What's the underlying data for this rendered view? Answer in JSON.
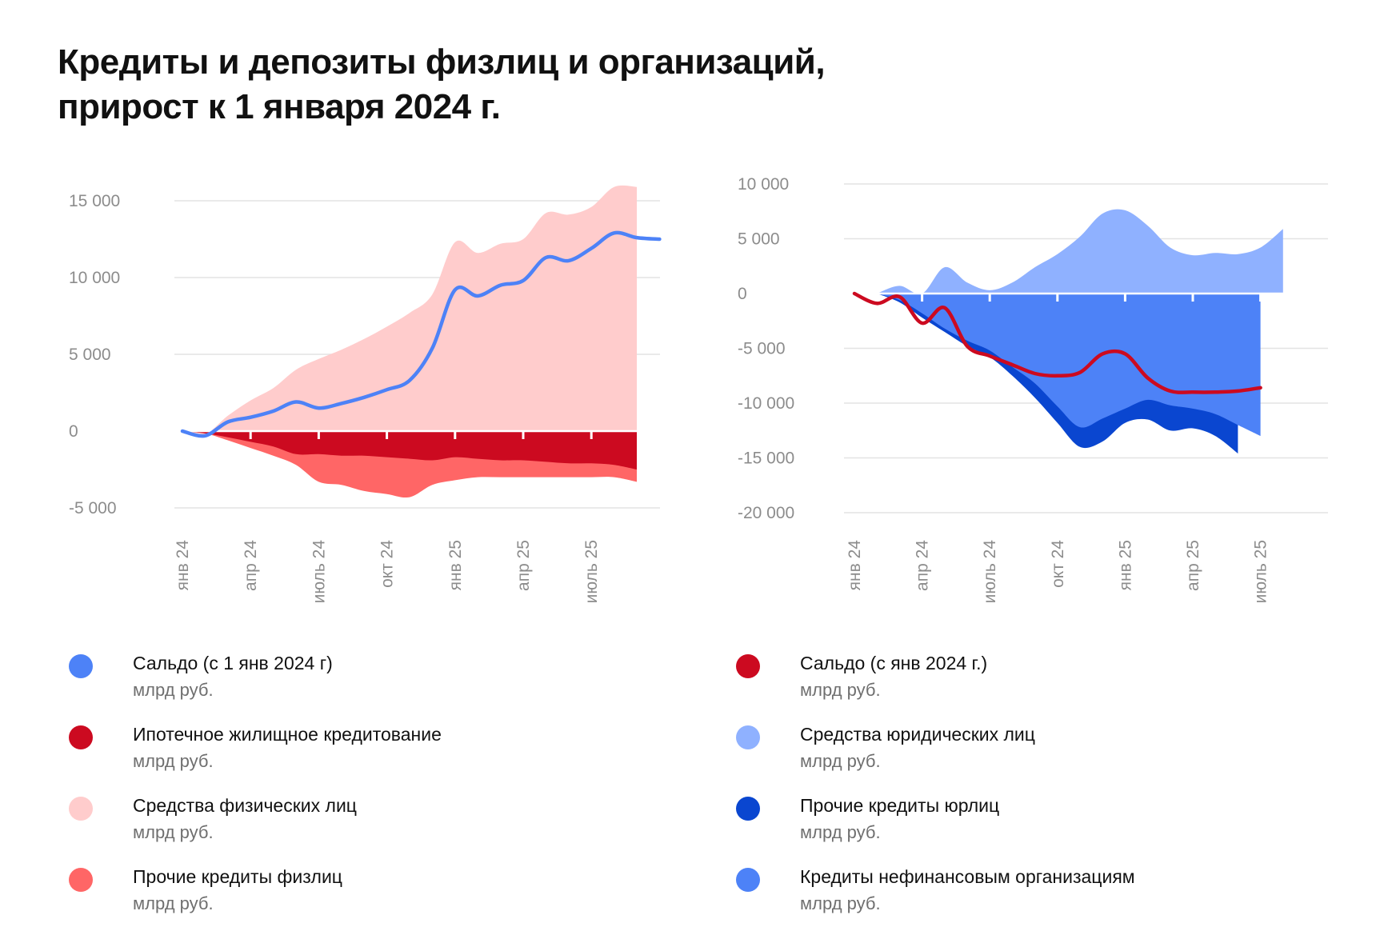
{
  "title": {
    "line1": "Кредиты и депозиты физлиц и организаций,",
    "line2": "прирост к 1 января 2024 г."
  },
  "chart_data": [
    {
      "type": "area",
      "ylim": [
        -5000,
        15000
      ],
      "yticks": [
        15000,
        10000,
        5000,
        0,
        -5000
      ],
      "ytick_labels": [
        "15 000",
        "10 000",
        "5 000",
        "0",
        "-5 000"
      ],
      "xlabels": [
        "янв 24",
        "апр 24",
        "июль 24",
        "окт 24",
        "янв 25",
        "апр 25",
        "июль 25"
      ],
      "xlabel_index": [
        0,
        3,
        6,
        9,
        12,
        15,
        18
      ],
      "n_months": 22,
      "series": [
        {
          "name": "Средства физических лиц",
          "kind": "area",
          "color": "#ffcccc",
          "values": [
            0,
            -200,
            1000,
            2000,
            2800,
            4000,
            4700,
            5300,
            6000,
            6800,
            7700,
            8900,
            12300,
            11600,
            12200,
            12500,
            14200,
            14100,
            14600,
            15900,
            15900,
            null
          ]
        },
        {
          "name": "Ипотечное жилищное кредитование",
          "kind": "neg-area",
          "color": "#cc0a20",
          "values": [
            0,
            -150,
            -400,
            -700,
            -1000,
            -1500,
            -1500,
            -1600,
            -1600,
            -1700,
            -1800,
            -1900,
            -1700,
            -1800,
            -1900,
            -1900,
            -2000,
            -2100,
            -2100,
            -2200,
            -2500,
            null
          ]
        },
        {
          "name": "Прочие кредиты физлиц",
          "kind": "neg-area",
          "color": "#ff6666",
          "values": [
            0,
            -150,
            -600,
            -1100,
            -1600,
            -2200,
            -3300,
            -3500,
            -3900,
            -4100,
            -4300,
            -3500,
            -3200,
            -3000,
            -3000,
            -3000,
            -3000,
            -3000,
            -3000,
            -3000,
            -3300,
            null
          ]
        },
        {
          "name": "Сальдо (с 1 янв 2024 г)",
          "kind": "line",
          "color": "#4d82f7",
          "values": [
            0,
            -300,
            600,
            900,
            1300,
            1900,
            1500,
            1800,
            2200,
            2700,
            3300,
            5400,
            9200,
            8800,
            9500,
            9800,
            11300,
            11100,
            11900,
            12900,
            12600,
            12500
          ]
        }
      ]
    },
    {
      "type": "area",
      "ylim": [
        -20000,
        10000
      ],
      "yticks": [
        10000,
        5000,
        0,
        -5000,
        -10000,
        -15000,
        -20000
      ],
      "ytick_labels": [
        "10 000",
        "5 000",
        "0",
        "-5 000",
        "-10 000",
        "-15 000",
        "-20 000"
      ],
      "xlabels": [
        "янв 24",
        "апр 24",
        "июль 24",
        "окт 24",
        "янв 25",
        "апр 25",
        "июль 25"
      ],
      "xlabel_index": [
        0,
        3,
        6,
        9,
        12,
        15,
        18
      ],
      "n_months": 22,
      "series": [
        {
          "name": "Средства юридических лиц",
          "kind": "area",
          "color": "#8fb1ff",
          "values": [
            null,
            0,
            700,
            0,
            2400,
            1000,
            300,
            1000,
            2400,
            3600,
            5200,
            7300,
            7600,
            6200,
            4200,
            3500,
            3700,
            3600,
            4200,
            5900,
            null,
            null
          ]
        },
        {
          "name": "Кредиты нефинансовым организациям",
          "kind": "neg-area",
          "color": "#4d82f7",
          "values": [
            null,
            0,
            -600,
            -1800,
            -3200,
            -4300,
            -5200,
            -6700,
            -8200,
            -10300,
            -12200,
            -11400,
            -10500,
            -9700,
            -10200,
            -10500,
            -11000,
            -12000,
            -13000,
            null,
            null,
            null
          ]
        },
        {
          "name": "Прочие кредиты юрлиц",
          "kind": "neg-area",
          "color": "#0a46d0",
          "values": [
            null,
            0,
            -800,
            -2200,
            -3500,
            -4800,
            -5800,
            -7500,
            -9500,
            -11800,
            -14000,
            -13500,
            -11800,
            -11500,
            -12500,
            -12300,
            -13000,
            -14600,
            null,
            null,
            null,
            null
          ]
        },
        {
          "name": "Сальдо (с янв 2024 г.)",
          "kind": "line",
          "color": "#cc0a20",
          "values": [
            0,
            -900,
            -300,
            -2700,
            -1300,
            -4800,
            -5700,
            -6500,
            -7300,
            -7500,
            -7200,
            -5500,
            -5500,
            -7700,
            -8900,
            -9000,
            -9000,
            -8900,
            -8600,
            null,
            null,
            null
          ]
        }
      ]
    }
  ],
  "legend_left": [
    {
      "label": "Сальдо (с 1 янв 2024 г)",
      "unit": "млрд руб.",
      "color": "#4d82f7"
    },
    {
      "label": "Ипотечное жилищное кредитование",
      "unit": "млрд руб.",
      "color": "#cc0a20"
    },
    {
      "label": "Средства физических лиц",
      "unit": "млрд руб.",
      "color": "#ffcccc"
    },
    {
      "label": "Прочие кредиты физлиц",
      "unit": "млрд руб.",
      "color": "#ff6666"
    }
  ],
  "legend_right": [
    {
      "label": "Сальдо (с янв 2024 г.)",
      "unit": "млрд руб.",
      "color": "#cc0a20"
    },
    {
      "label": "Средства юридических лиц",
      "unit": "млрд руб.",
      "color": "#8fb1ff"
    },
    {
      "label": "Прочие кредиты юрлиц",
      "unit": "млрд руб.",
      "color": "#0a46d0"
    },
    {
      "label": "Кредиты нефинансовым организациям",
      "unit": "млрд руб.",
      "color": "#4d82f7"
    }
  ]
}
